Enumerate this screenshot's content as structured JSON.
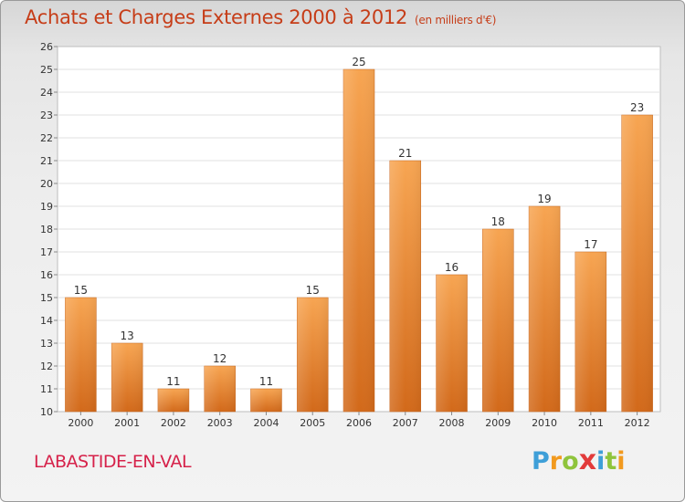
{
  "header": {
    "title": "Achats et Charges Externes 2000 à 2012",
    "subtitle": "(en milliers d'€)"
  },
  "footer": {
    "commune": "LABASTIDE-EN-VAL",
    "logo_letters": [
      "P",
      "r",
      "o",
      "x",
      "i",
      "t",
      "i"
    ]
  },
  "colors": {
    "title": "#c63d18",
    "commune": "#d6224a",
    "bar_light": "#f7a552",
    "bar_dark": "#d2691a"
  },
  "chart_data": {
    "type": "bar",
    "title": "Achats et Charges Externes 2000 à 2012",
    "subtitle": "(en milliers d'€)",
    "categories": [
      "2000",
      "2001",
      "2002",
      "2003",
      "2004",
      "2005",
      "2006",
      "2007",
      "2008",
      "2009",
      "2010",
      "2011",
      "2012"
    ],
    "values": [
      15,
      13,
      11,
      12,
      11,
      15,
      25,
      21,
      16,
      18,
      19,
      17,
      23
    ],
    "ylim": [
      10,
      26
    ],
    "yticks": [
      10,
      11,
      12,
      13,
      14,
      15,
      16,
      17,
      18,
      19,
      20,
      21,
      22,
      23,
      24,
      25,
      26
    ],
    "grid": true,
    "legend": "none"
  }
}
